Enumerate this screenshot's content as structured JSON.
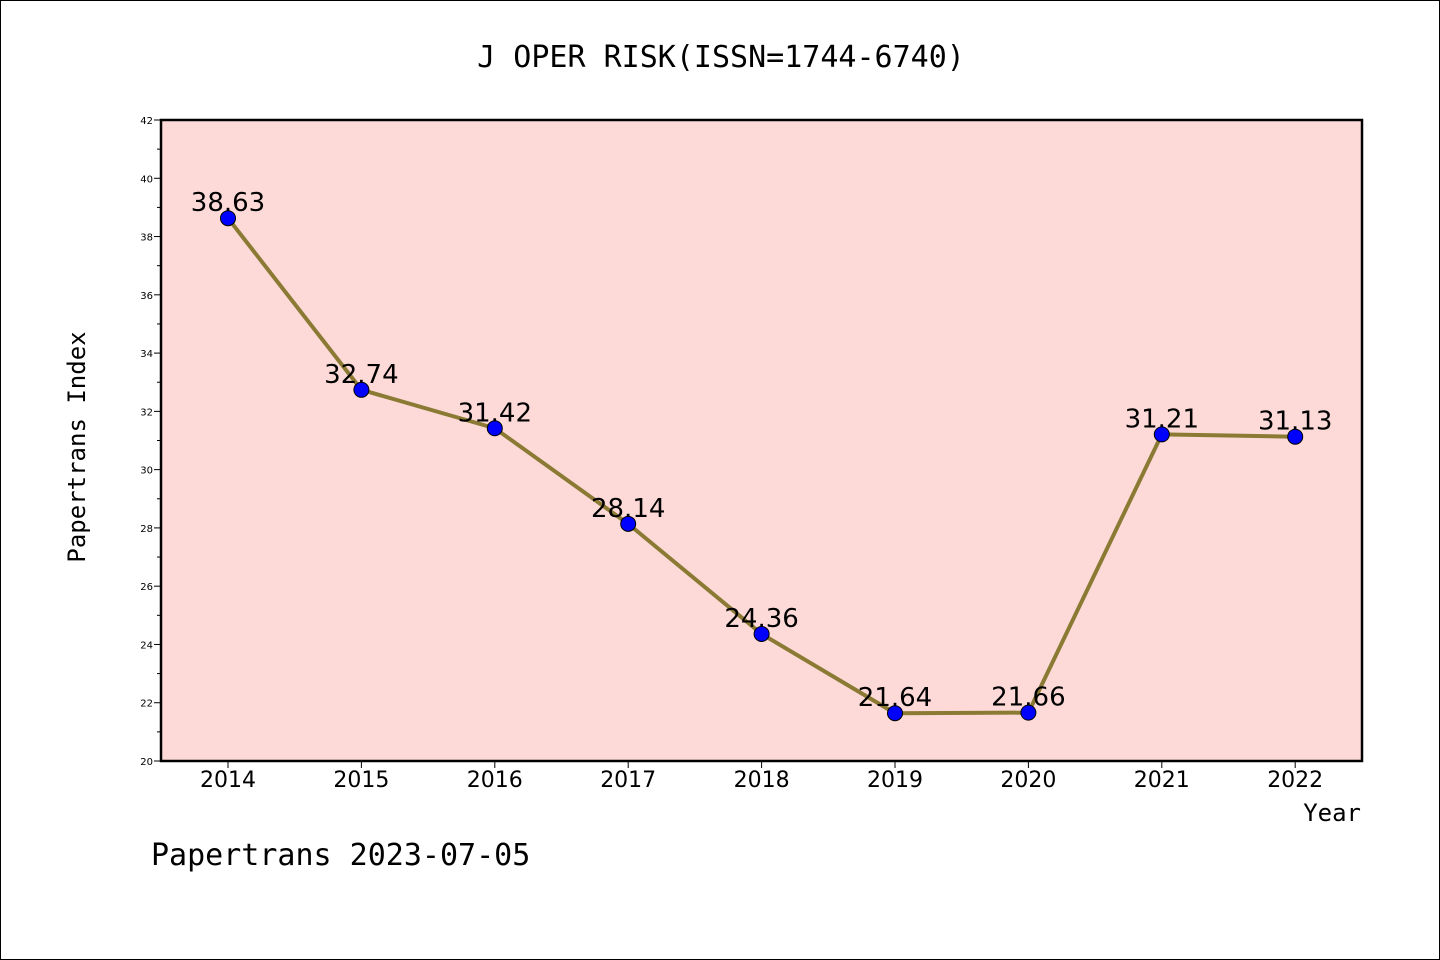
{
  "chart_data": {
    "type": "line",
    "title": "J OPER RISK(ISSN=1744-6740)",
    "xlabel": "Year",
    "ylabel": "Papertrans Index",
    "categories": [
      "2014",
      "2015",
      "2016",
      "2017",
      "2018",
      "2019",
      "2020",
      "2021",
      "2022"
    ],
    "series": [
      {
        "values": [
          38.63,
          32.74,
          31.42,
          28.14,
          24.36,
          21.64,
          21.66,
          31.21,
          31.13
        ],
        "labels": [
          "38.63",
          "32.74",
          "31.42",
          "28.14",
          "24.36",
          "21.64",
          "21.66",
          "31.21",
          "31.13"
        ]
      }
    ],
    "ylim": [
      20,
      42
    ],
    "y_ticks": [
      "20",
      "22",
      "24",
      "26",
      "28",
      "30",
      "32",
      "34",
      "36",
      "38",
      "40",
      "42"
    ],
    "grid": false,
    "colors": {
      "plot_background": "#FDDAD8",
      "line": "#8B7A33",
      "marker": "#0000FF"
    }
  },
  "footer": "Papertrans 2023-07-05"
}
